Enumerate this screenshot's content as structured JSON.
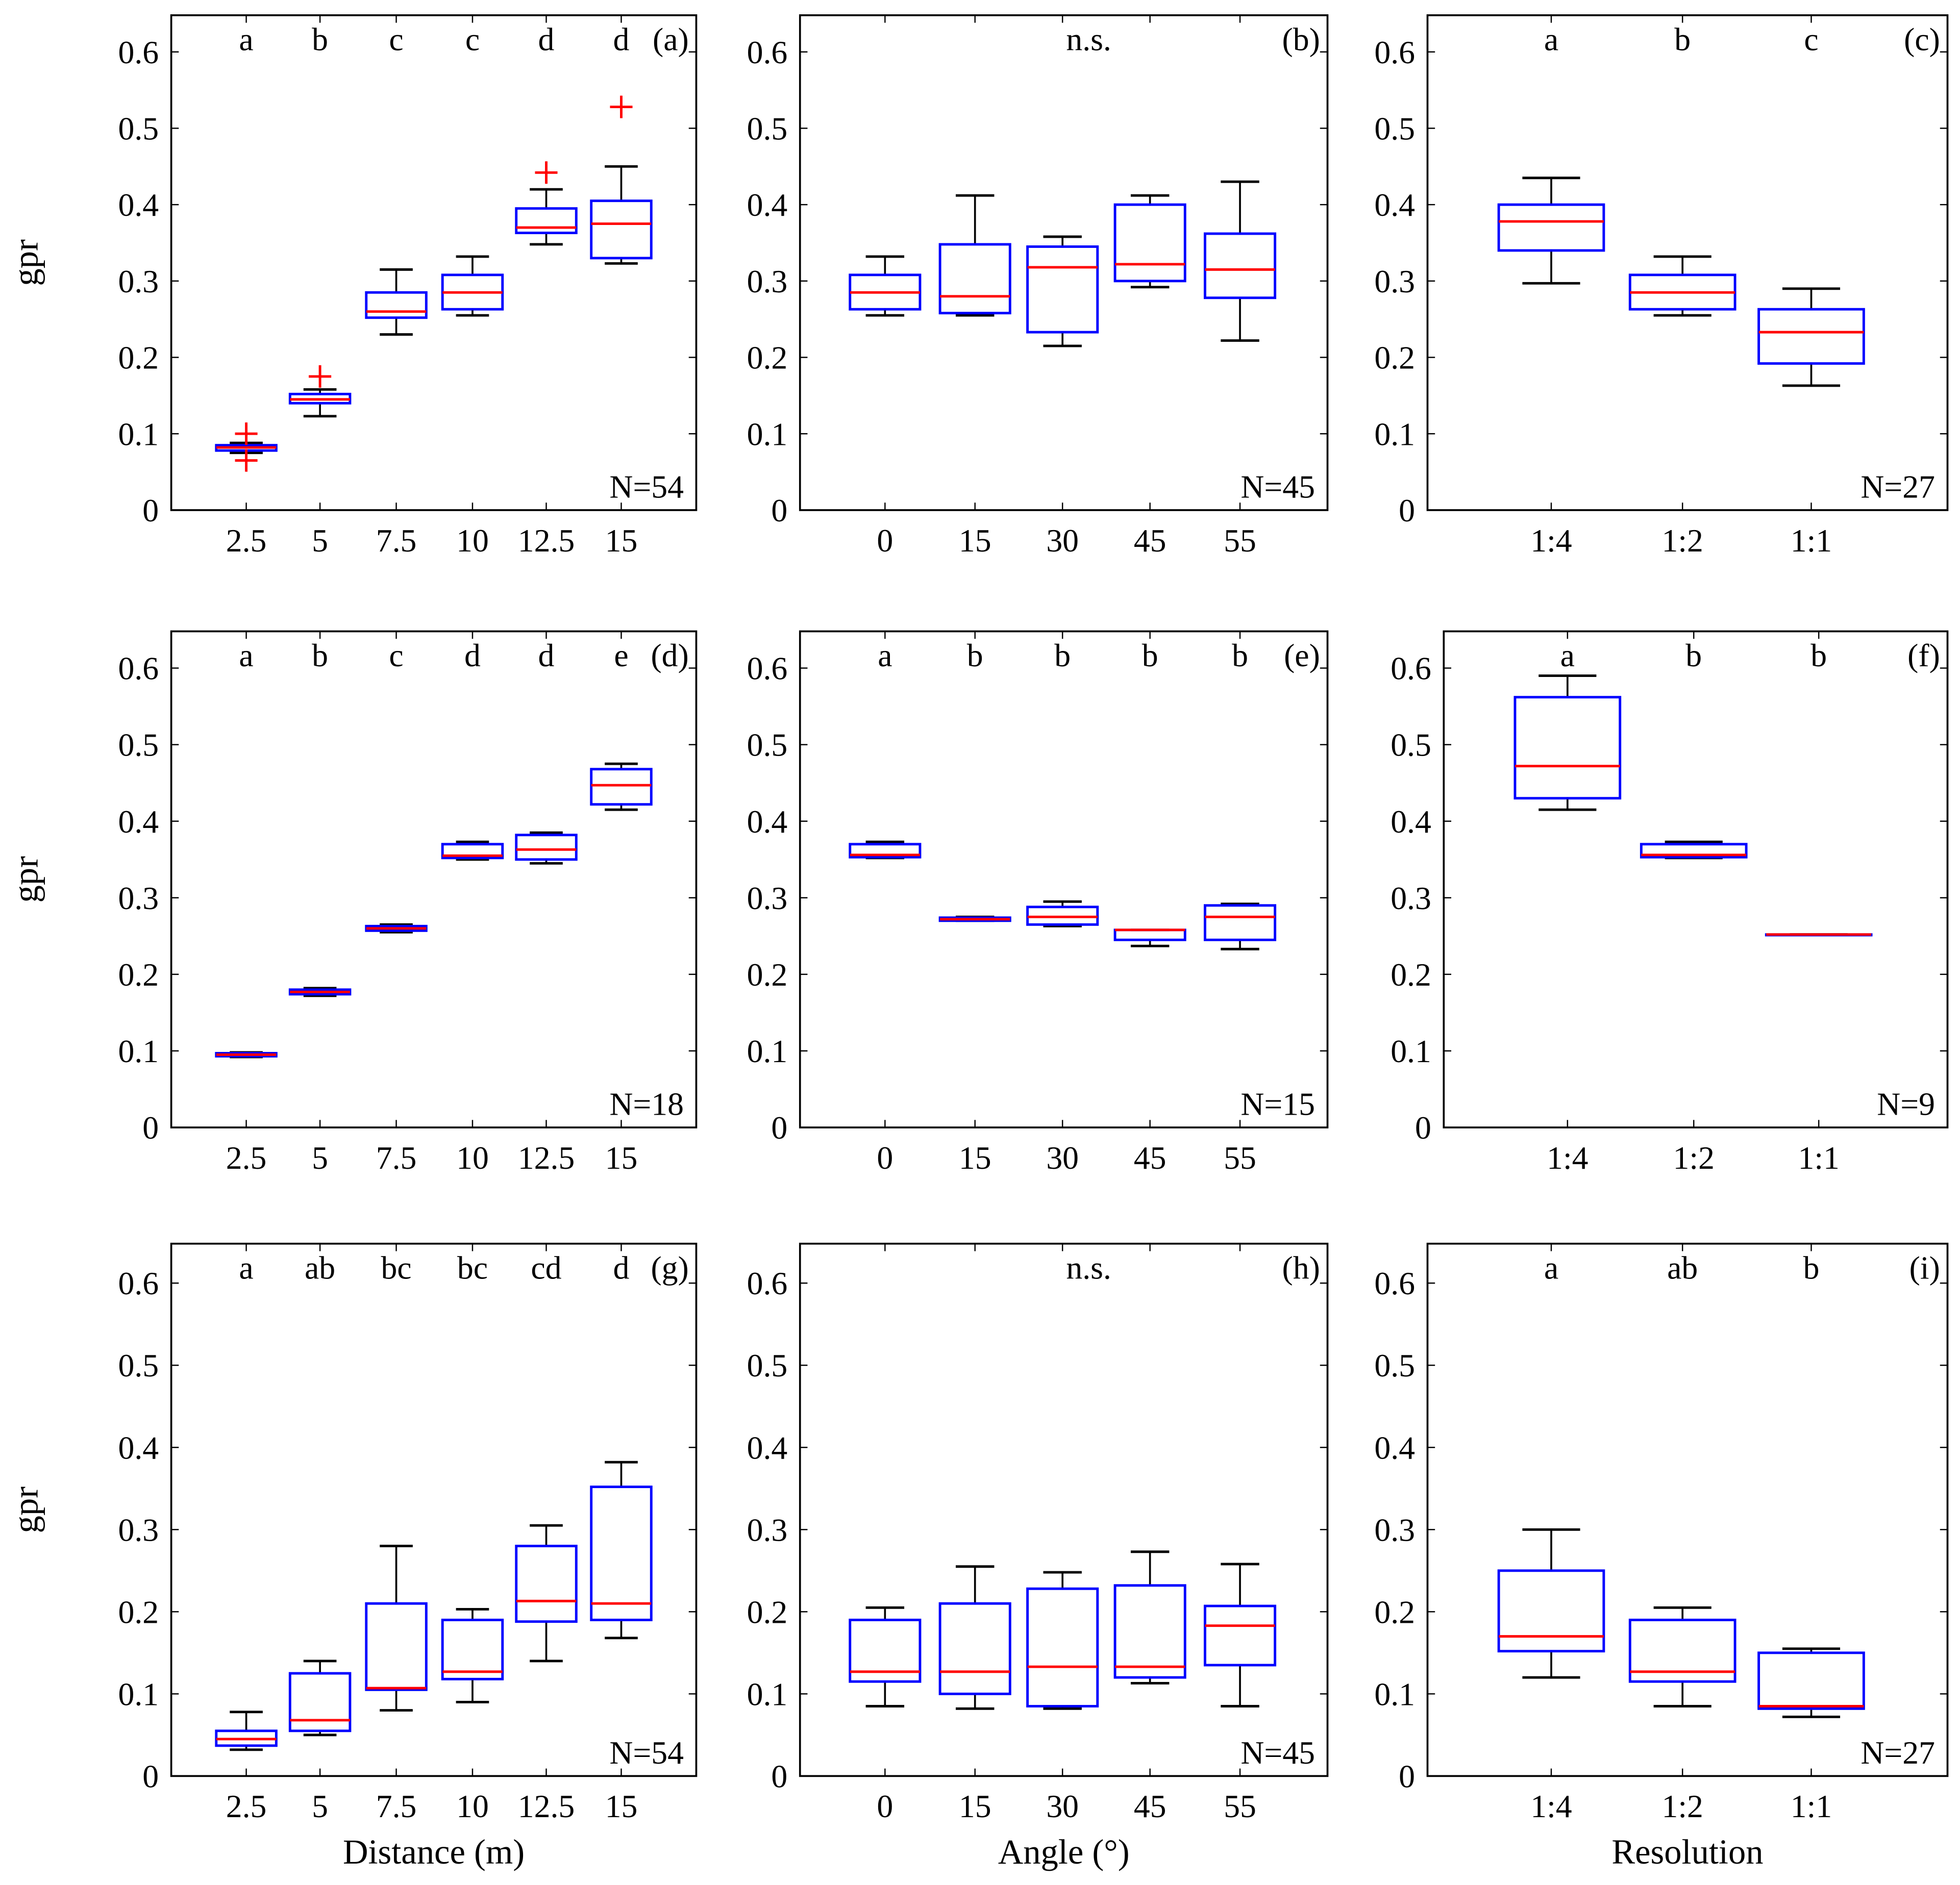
{
  "chart_data": [
    {
      "type": "box",
      "panel_label": "(a)",
      "xlabel": "",
      "ylabel": "gpr",
      "n_label": "N=54",
      "ylim": [
        0,
        0.648
      ],
      "yticks": [
        "0",
        "0.1",
        "0.2",
        "0.3",
        "0.4",
        "0.5",
        "0.6"
      ],
      "categories": [
        "2.5",
        "5",
        "7.5",
        "10",
        "12.5",
        "15"
      ],
      "letters": [
        "a",
        "b",
        "c",
        "c",
        "d",
        "d"
      ],
      "boxes": [
        [
          0.075,
          0.078,
          0.082,
          0.085,
          0.088
        ],
        [
          0.123,
          0.14,
          0.145,
          0.152,
          0.158
        ],
        [
          0.23,
          0.252,
          0.26,
          0.285,
          0.315
        ],
        [
          0.255,
          0.263,
          0.285,
          0.308,
          0.332
        ],
        [
          0.348,
          0.363,
          0.37,
          0.395,
          0.42
        ],
        [
          0.323,
          0.33,
          0.375,
          0.405,
          0.45
        ]
      ],
      "outliers": [
        [
          0.065,
          0.1
        ],
        [
          0.175
        ],
        [],
        [],
        [
          0.442
        ],
        [
          0.528
        ]
      ]
    },
    {
      "type": "box",
      "panel_label": "(b)",
      "xlabel": "",
      "ylabel": "",
      "n_label": "N=45",
      "ylim": [
        0,
        0.648
      ],
      "yticks": [
        "0",
        "0.1",
        "0.2",
        "0.3",
        "0.4",
        "0.5",
        "0.6"
      ],
      "categories": [
        "0",
        "15",
        "30",
        "45",
        "55"
      ],
      "significance": "n.s.",
      "boxes": [
        [
          0.255,
          0.263,
          0.285,
          0.308,
          0.332
        ],
        [
          0.255,
          0.258,
          0.28,
          0.348,
          0.412
        ],
        [
          0.215,
          0.233,
          0.318,
          0.345,
          0.358
        ],
        [
          0.292,
          0.3,
          0.322,
          0.4,
          0.412
        ],
        [
          0.222,
          0.278,
          0.315,
          0.362,
          0.43
        ]
      ],
      "outliers": [
        [],
        [],
        [],
        [],
        []
      ]
    },
    {
      "type": "box",
      "panel_label": "(c)",
      "xlabel": "",
      "ylabel": "",
      "n_label": "N=27",
      "ylim": [
        0,
        0.648
      ],
      "yticks": [
        "0",
        "0.1",
        "0.2",
        "0.3",
        "0.4",
        "0.5",
        "0.6"
      ],
      "categories": [
        "1:4",
        "1:2",
        "1:1"
      ],
      "letters": [
        "a",
        "b",
        "c"
      ],
      "boxes": [
        [
          0.297,
          0.34,
          0.378,
          0.4,
          0.435
        ],
        [
          0.255,
          0.263,
          0.285,
          0.308,
          0.332
        ],
        [
          0.163,
          0.192,
          0.233,
          0.263,
          0.29
        ]
      ],
      "outliers": [
        [],
        [],
        []
      ]
    },
    {
      "type": "box",
      "panel_label": "(d)",
      "xlabel": "",
      "ylabel": "gpr",
      "n_label": "N=18",
      "ylim": [
        0,
        0.648
      ],
      "yticks": [
        "0",
        "0.1",
        "0.2",
        "0.3",
        "0.4",
        "0.5",
        "0.6"
      ],
      "categories": [
        "2.5",
        "5",
        "7.5",
        "10",
        "12.5",
        "15"
      ],
      "letters": [
        "a",
        "b",
        "c",
        "d",
        "d",
        "e"
      ],
      "boxes": [
        [
          0.092,
          0.093,
          0.095,
          0.097,
          0.098
        ],
        [
          0.172,
          0.174,
          0.177,
          0.18,
          0.182
        ],
        [
          0.255,
          0.257,
          0.26,
          0.263,
          0.265
        ],
        [
          0.35,
          0.352,
          0.355,
          0.37,
          0.373
        ],
        [
          0.345,
          0.35,
          0.363,
          0.382,
          0.385
        ],
        [
          0.415,
          0.422,
          0.447,
          0.468,
          0.475
        ]
      ],
      "outliers": [
        [],
        [],
        [],
        [],
        [],
        []
      ]
    },
    {
      "type": "box",
      "panel_label": "(e)",
      "xlabel": "",
      "ylabel": "",
      "n_label": "N=15",
      "ylim": [
        0,
        0.648
      ],
      "yticks": [
        "0",
        "0.1",
        "0.2",
        "0.3",
        "0.4",
        "0.5",
        "0.6"
      ],
      "categories": [
        "0",
        "15",
        "30",
        "45",
        "55"
      ],
      "letters": [
        "a",
        "b",
        "b",
        "b",
        "b"
      ],
      "boxes": [
        [
          0.352,
          0.353,
          0.356,
          0.37,
          0.373
        ],
        [
          0.27,
          0.27,
          0.272,
          0.274,
          0.275
        ],
        [
          0.263,
          0.265,
          0.275,
          0.288,
          0.295
        ],
        [
          0.237,
          0.245,
          0.258,
          0.258,
          0.258
        ],
        [
          0.233,
          0.245,
          0.275,
          0.29,
          0.292
        ]
      ],
      "outliers": [
        [],
        [],
        [],
        [],
        []
      ]
    },
    {
      "type": "box",
      "panel_label": "(f)",
      "xlabel": "",
      "ylabel": "",
      "n_label": "N=9",
      "ylim": [
        0,
        0.648
      ],
      "yticks": [
        "0",
        "0.1",
        "0.2",
        "0.3",
        "0.4",
        "0.5",
        "0.6"
      ],
      "categories": [
        "1:4",
        "1:2",
        "1:1"
      ],
      "letters": [
        "a",
        "b",
        "b"
      ],
      "boxes": [
        [
          0.415,
          0.43,
          0.472,
          0.562,
          0.59
        ],
        [
          0.352,
          0.353,
          0.356,
          0.37,
          0.373
        ],
        [
          0.252,
          0.252,
          0.252,
          0.252,
          0.252
        ]
      ],
      "outliers": [
        [],
        [],
        []
      ]
    },
    {
      "type": "box",
      "panel_label": "(g)",
      "xlabel": "Distance (m)",
      "ylabel": "gpr",
      "n_label": "N=54",
      "ylim": [
        0,
        0.648
      ],
      "yticks": [
        "0",
        "0.1",
        "0.2",
        "0.3",
        "0.4",
        "0.5",
        "0.6"
      ],
      "categories": [
        "2.5",
        "5",
        "7.5",
        "10",
        "12.5",
        "15"
      ],
      "letters": [
        "a",
        "ab",
        "bc",
        "bc",
        "cd",
        "d"
      ],
      "boxes": [
        [
          0.032,
          0.037,
          0.045,
          0.055,
          0.078
        ],
        [
          0.05,
          0.055,
          0.068,
          0.125,
          0.14
        ],
        [
          0.08,
          0.105,
          0.107,
          0.21,
          0.28
        ],
        [
          0.09,
          0.118,
          0.127,
          0.19,
          0.203
        ],
        [
          0.14,
          0.188,
          0.213,
          0.28,
          0.305
        ],
        [
          0.168,
          0.19,
          0.21,
          0.352,
          0.382
        ]
      ],
      "outliers": [
        [],
        [],
        [],
        [],
        [],
        []
      ]
    },
    {
      "type": "box",
      "panel_label": "(h)",
      "xlabel": "Angle (°)",
      "ylabel": "",
      "n_label": "N=45",
      "ylim": [
        0,
        0.648
      ],
      "yticks": [
        "0",
        "0.1",
        "0.2",
        "0.3",
        "0.4",
        "0.5",
        "0.6"
      ],
      "categories": [
        "0",
        "15",
        "30",
        "45",
        "55"
      ],
      "significance": "n.s.",
      "boxes": [
        [
          0.085,
          0.115,
          0.127,
          0.19,
          0.205
        ],
        [
          0.082,
          0.1,
          0.127,
          0.21,
          0.255
        ],
        [
          0.082,
          0.085,
          0.133,
          0.228,
          0.248
        ],
        [
          0.113,
          0.12,
          0.133,
          0.232,
          0.273
        ],
        [
          0.085,
          0.135,
          0.183,
          0.207,
          0.258
        ]
      ],
      "outliers": [
        [],
        [],
        [],
        [],
        []
      ]
    },
    {
      "type": "box",
      "panel_label": "(i)",
      "xlabel": "Resolution",
      "ylabel": "",
      "n_label": "N=27",
      "ylim": [
        0,
        0.648
      ],
      "yticks": [
        "0",
        "0.1",
        "0.2",
        "0.3",
        "0.4",
        "0.5",
        "0.6"
      ],
      "categories": [
        "1:4",
        "1:2",
        "1:1"
      ],
      "letters": [
        "a",
        "ab",
        "b"
      ],
      "boxes": [
        [
          0.12,
          0.152,
          0.17,
          0.25,
          0.3
        ],
        [
          0.085,
          0.115,
          0.127,
          0.19,
          0.205
        ],
        [
          0.072,
          0.082,
          0.085,
          0.15,
          0.155
        ]
      ],
      "outliers": [
        [],
        [],
        []
      ]
    }
  ],
  "colors": {
    "box": "#0000ff",
    "median": "#ff0000",
    "outlier": "#ff0000",
    "whisker": "#000000"
  }
}
